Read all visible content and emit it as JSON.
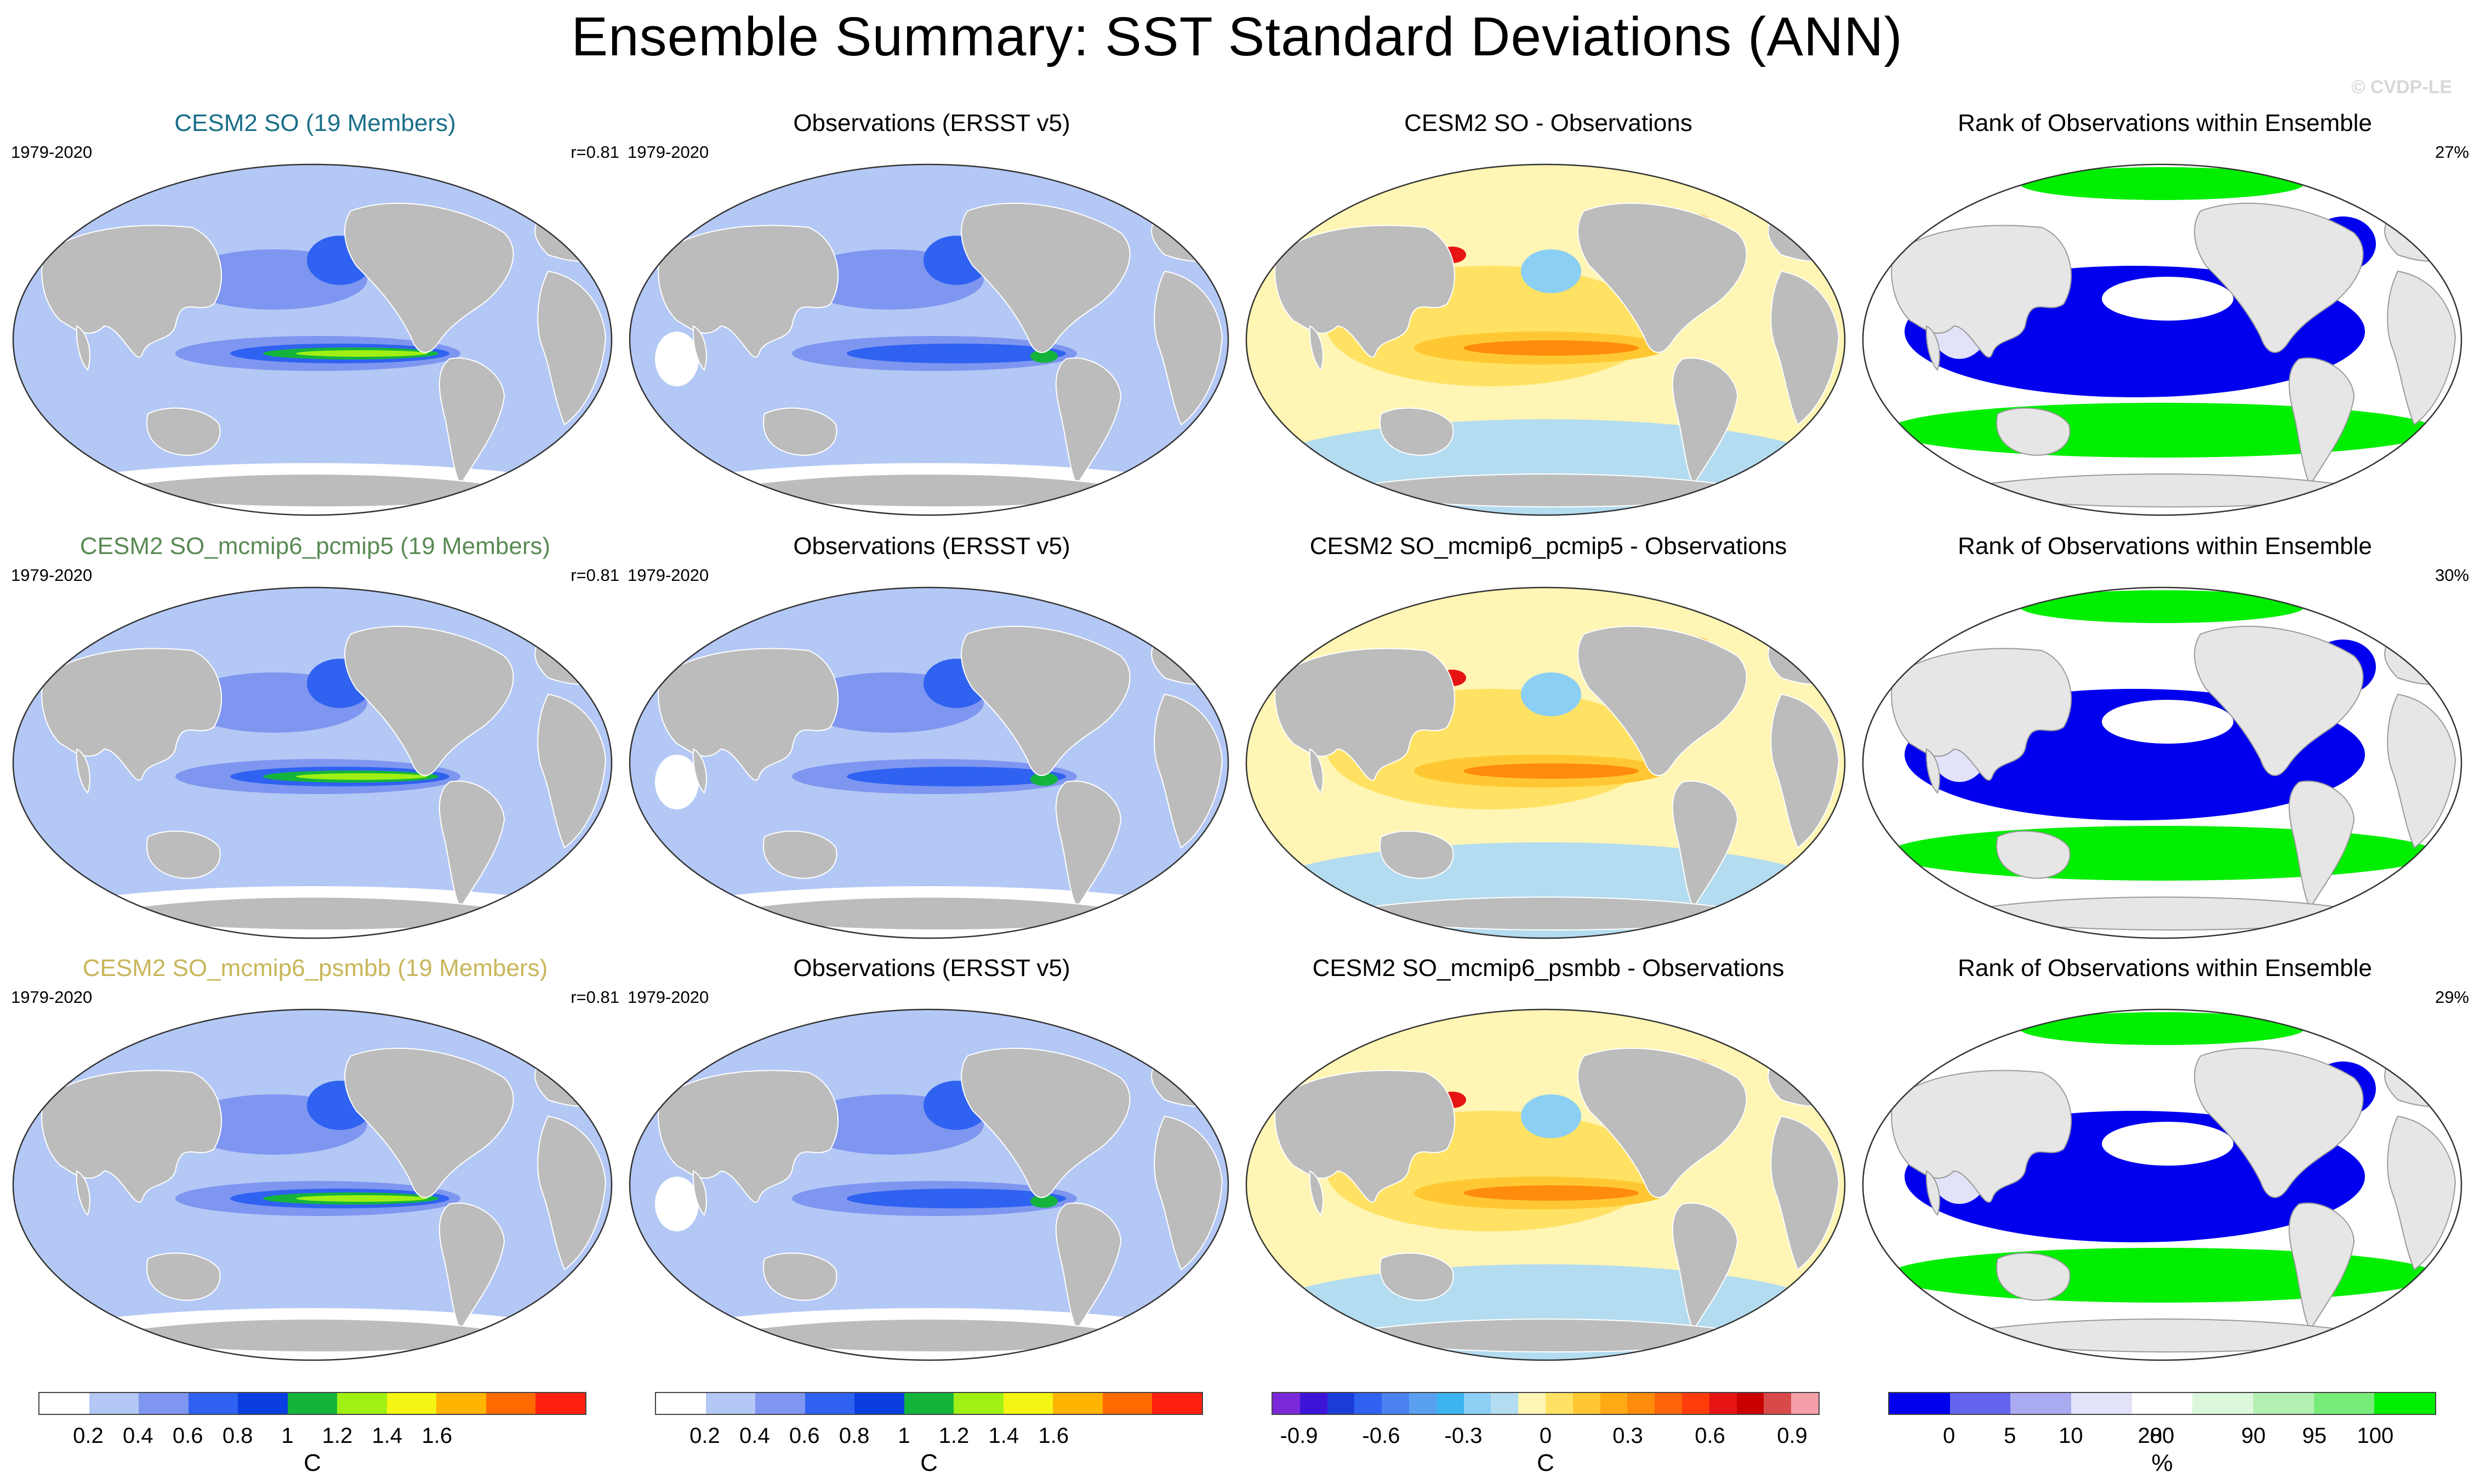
{
  "figure": {
    "title": "Ensemble Summary: SST Standard Deviations (ANN)",
    "copyright": "© CVDP-LE"
  },
  "rows": [
    {
      "ensemble_title": "CESM2 SO (19 Members)",
      "ensemble_title_color": "#1a6e8a",
      "years": "1979-2020",
      "pattern_corr": "r=0.81",
      "obs_title": "Observations (ERSST v5)",
      "obs_years": "1979-2020",
      "diff_title": "CESM2 SO - Observations",
      "rank_title": "Rank of Observations within Ensemble",
      "rank_pct": "27%"
    },
    {
      "ensemble_title": "CESM2 SO_mcmip6_pcmip5 (19 Members)",
      "ensemble_title_color": "#5a8a55",
      "years": "1979-2020",
      "pattern_corr": "r=0.81",
      "obs_title": "Observations (ERSST v5)",
      "obs_years": "1979-2020",
      "diff_title": "CESM2 SO_mcmip6_pcmip5 - Observations",
      "rank_title": "Rank of Observations within Ensemble",
      "rank_pct": "30%"
    },
    {
      "ensemble_title": "CESM2 SO_mcmip6_psmbb (19 Members)",
      "ensemble_title_color": "#c8b65a",
      "years": "1979-2020",
      "pattern_corr": "r=0.81",
      "obs_title": "Observations (ERSST v5)",
      "obs_years": "1979-2020",
      "diff_title": "CESM2 SO_mcmip6_psmbb - Observations",
      "rank_title": "Rank of Observations within Ensemble",
      "rank_pct": "29%"
    }
  ],
  "colorbars": {
    "sst": {
      "colors": [
        "#ffffff",
        "#b4c8f5",
        "#7f96f0",
        "#2f62f0",
        "#0a3ee0",
        "#14b43c",
        "#a0f014",
        "#f5f514",
        "#ffb400",
        "#ff6a00",
        "#ff2010"
      ],
      "ticks": [
        "0.2",
        "0.4",
        "0.6",
        "0.8",
        "1",
        "1.2",
        "1.4",
        "1.6"
      ],
      "unit": "C"
    },
    "diff": {
      "colors": [
        "#7a28d8",
        "#3c14d8",
        "#1a3cd8",
        "#2f62f0",
        "#4a82f0",
        "#5aa0f0",
        "#3cb4f0",
        "#8ccff5",
        "#b4dcf0",
        "#fff5b4",
        "#ffe264",
        "#ffc832",
        "#ffaa14",
        "#ff8c0a",
        "#ff640a",
        "#ff3c0a",
        "#e61414",
        "#c80000",
        "#d84a4a",
        "#f5a0a8"
      ],
      "ticks": [
        "-0.9",
        "-0.6",
        "-0.3",
        "0",
        "0.3",
        "0.6",
        "0.9"
      ],
      "unit": "C"
    },
    "rank": {
      "colors": [
        "#0000ee",
        "#6464ee",
        "#aaaaf0",
        "#e2e2f8",
        "#ffffff",
        "#dcf8dc",
        "#b4f0b4",
        "#78ec78",
        "#00ee00"
      ],
      "ticks": [
        "0",
        "5",
        "10",
        "20",
        "80",
        "90",
        "95",
        "100"
      ],
      "unit": "%"
    }
  },
  "chart_data": [
    {
      "type": "heatmap",
      "title": "CESM2 SO (19 Members)",
      "units": "C",
      "annotations": [
        "1979-2020",
        "r=0.81"
      ],
      "note": "global map of SST standard deviation; maximum in eastern equatorial Pacific (>1.2 C)"
    },
    {
      "type": "heatmap",
      "title": "Observations (ERSST v5)",
      "units": "C",
      "annotations": [
        "1979-2020"
      ]
    },
    {
      "type": "heatmap",
      "title": "CESM2 SO - Observations",
      "units": "C",
      "annotations": []
    },
    {
      "type": "heatmap",
      "title": "Rank of Observations within Ensemble",
      "units": "%",
      "annotations": [
        "27%"
      ]
    },
    {
      "type": "heatmap",
      "title": "CESM2 SO_mcmip6_pcmip5 (19 Members)",
      "units": "C",
      "annotations": [
        "1979-2020",
        "r=0.81"
      ]
    },
    {
      "type": "heatmap",
      "title": "CESM2 SO_mcmip6_pcmip5 - Observations",
      "units": "C",
      "annotations": []
    },
    {
      "type": "heatmap",
      "title": "Rank of Observations within Ensemble",
      "units": "%",
      "annotations": [
        "30%"
      ]
    },
    {
      "type": "heatmap",
      "title": "CESM2 SO_mcmip6_psmbb (19 Members)",
      "units": "C",
      "annotations": [
        "1979-2020",
        "r=0.81"
      ]
    },
    {
      "type": "heatmap",
      "title": "CESM2 SO_mcmip6_psmbb - Observations",
      "units": "C",
      "annotations": []
    },
    {
      "type": "heatmap",
      "title": "Rank of Observations within Ensemble",
      "units": "%",
      "annotations": [
        "29%"
      ]
    }
  ]
}
